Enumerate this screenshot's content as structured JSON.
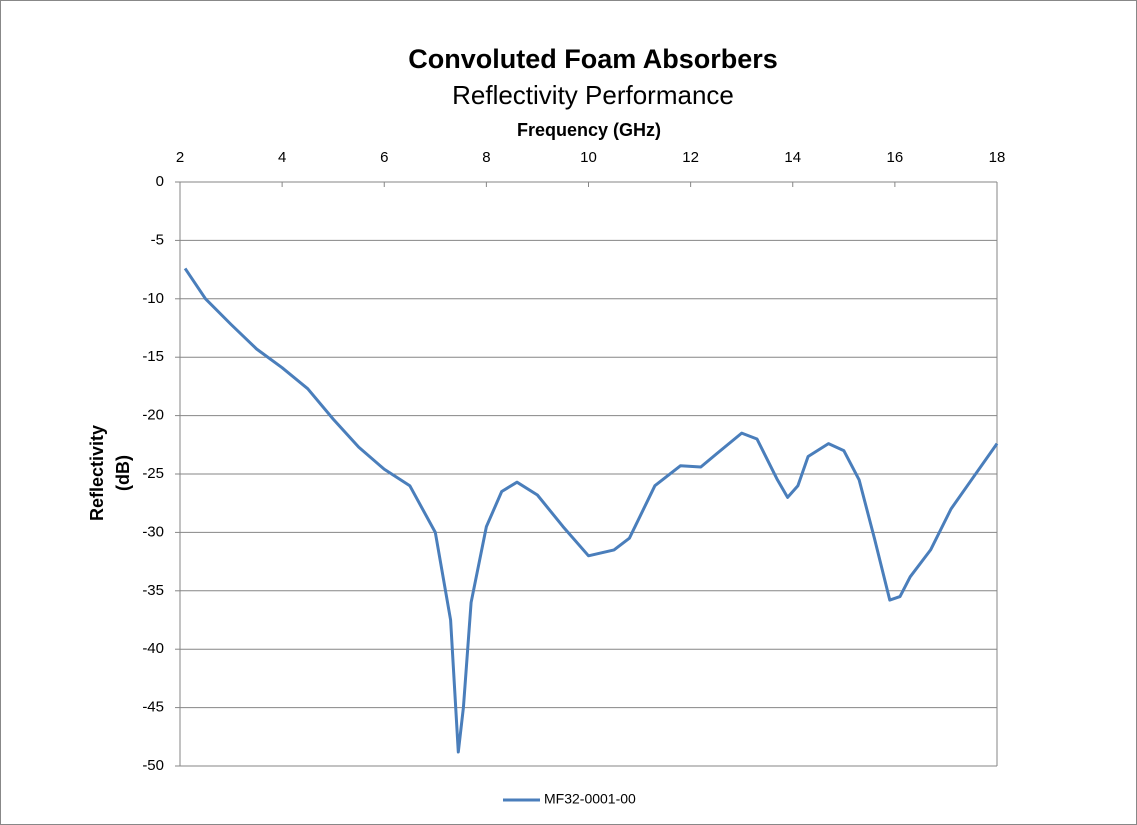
{
  "chart_data": {
    "type": "line",
    "title": "Convoluted Foam Absorbers",
    "subtitle": "Reflectivity Performance",
    "x_label": "Frequency (GHz)",
    "y_label": [
      "Reflectivity",
      "(dB)"
    ],
    "x": [
      2.1,
      2.5,
      3,
      3.5,
      4,
      4.5,
      5,
      5.5,
      6,
      6.5,
      7,
      7.3,
      7.45,
      7.55,
      7.7,
      8,
      8.3,
      8.6,
      9,
      9.5,
      10,
      10.5,
      10.8,
      11.3,
      11.8,
      12.2,
      12.5,
      13,
      13.3,
      13.7,
      13.9,
      14.1,
      14.3,
      14.7,
      15,
      15.3,
      15.6,
      15.9,
      16.1,
      16.3,
      16.7,
      17.1,
      17.5,
      18
    ],
    "series": [
      {
        "name": "MF32-0001-00",
        "color": "#4a7ebb",
        "values": [
          -7.4,
          -10.0,
          -12.2,
          -14.3,
          -15.9,
          -17.7,
          -20.3,
          -22.7,
          -24.6,
          -26.0,
          -30.0,
          -37.5,
          -48.8,
          -45.0,
          -36.0,
          -29.5,
          -26.5,
          -25.7,
          -26.8,
          -29.5,
          -32.0,
          -31.5,
          -30.5,
          -26.0,
          -24.3,
          -24.4,
          -23.3,
          -21.5,
          -22.0,
          -25.5,
          -27.0,
          -26.0,
          -23.5,
          -22.4,
          -23.0,
          -25.5,
          -30.5,
          -35.8,
          -35.5,
          -33.8,
          -31.5,
          -28.0,
          -25.5,
          -22.4
        ]
      }
    ],
    "xlim": [
      2,
      18
    ],
    "xticks": [
      2,
      4,
      6,
      8,
      10,
      12,
      14,
      16,
      18
    ],
    "ylim": [
      -50,
      0
    ],
    "yticks": [
      0,
      -5,
      -10,
      -15,
      -20,
      -25,
      -30,
      -35,
      -40,
      -45,
      -50
    ],
    "grid": true,
    "legend": "bottom"
  }
}
